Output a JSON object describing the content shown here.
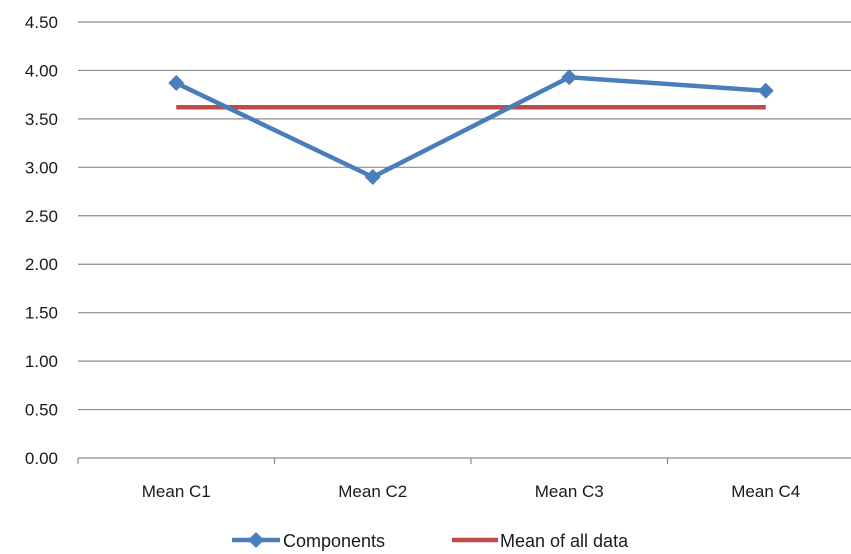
{
  "chart_data": {
    "type": "line",
    "categories": [
      "Mean C1",
      "Mean C2",
      "Mean C3",
      "Mean C4"
    ],
    "series": [
      {
        "name": "Components",
        "values": [
          3.87,
          2.9,
          3.93,
          3.79
        ],
        "color": "#4a7ebb",
        "marker": "diamond"
      },
      {
        "name": "Mean of all data",
        "values": [
          3.62,
          3.62,
          3.62,
          3.62
        ],
        "color": "#be4b48",
        "marker": "none"
      }
    ],
    "yticks": [
      "0.00",
      "0.50",
      "1.00",
      "1.50",
      "2.00",
      "2.50",
      "3.00",
      "3.50",
      "4.00",
      "4.50"
    ],
    "ylim": [
      0,
      4.5
    ],
    "grid": true,
    "legend_position": "bottom",
    "title": "",
    "xlabel": "",
    "ylabel": ""
  }
}
